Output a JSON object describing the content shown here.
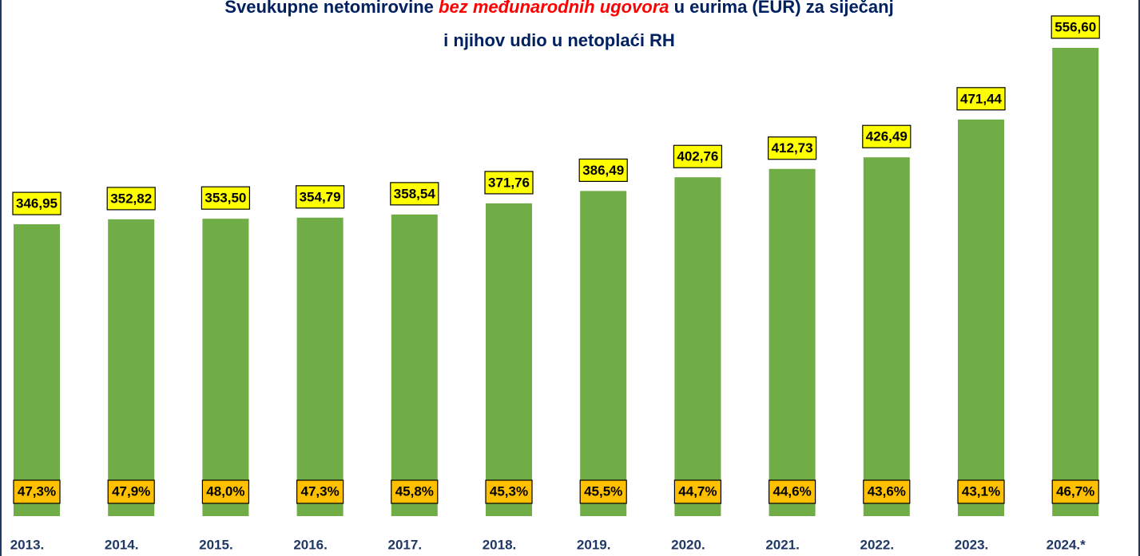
{
  "chart_data": {
    "type": "bar",
    "title_parts": [
      "Sveukupne netomirovine ",
      "bez međunarodnih  ugovora",
      " u eurima (EUR) za siječanj"
    ],
    "title_line2": "i njihov udio u netoplaći RH",
    "categories": [
      "2013.",
      "2014.",
      "2015.",
      "2016.",
      "2017.",
      "2018.",
      "2019.",
      "2020.",
      "2021.",
      "2022.",
      "2023.",
      "2024.*"
    ],
    "values": [
      346.95,
      352.82,
      353.5,
      354.79,
      358.54,
      371.76,
      386.49,
      402.76,
      412.73,
      426.49,
      471.44,
      556.6
    ],
    "value_labels": [
      "346,95",
      "352,82",
      "353,50",
      "354,79",
      "358,54",
      "371,76",
      "386,49",
      "402,76",
      "412,73",
      "426,49",
      "471,44",
      "556,60"
    ],
    "shares": [
      47.3,
      47.9,
      48.0,
      47.3,
      45.8,
      45.3,
      45.5,
      44.7,
      44.6,
      43.6,
      43.1,
      46.7
    ],
    "share_labels": [
      "47,3%",
      "47,9%",
      "48,0%",
      "47,3%",
      "45,8%",
      "45,3%",
      "45,5%",
      "44,7%",
      "44,6%",
      "43,6%",
      "43,1%",
      "46,7%"
    ],
    "color": "#70ad47"
  }
}
